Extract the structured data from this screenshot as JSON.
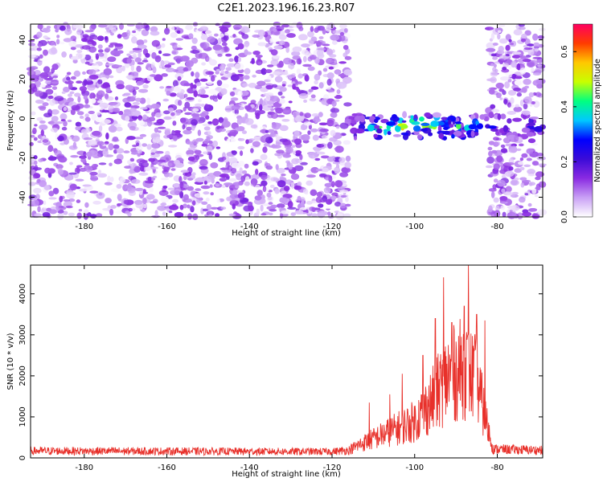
{
  "title": "C2E1.2023.196.16.23.R07",
  "colors": {
    "snr_line": "#e8302a",
    "axis": "#000000"
  },
  "chart_data": [
    {
      "type": "heatmap",
      "xlabel": "Height of straight line (km)",
      "ylabel": "Frequency (Hz)",
      "xlim": [
        -193,
        -69
      ],
      "ylim": [
        -50,
        48
      ],
      "x_ticks": [
        -180,
        -160,
        -140,
        -120,
        -100,
        -80
      ],
      "y_ticks": [
        -40,
        -20,
        0,
        20,
        40
      ],
      "colorbar": {
        "label": "Normalized spectral amplitude",
        "range": [
          0.0,
          0.7
        ],
        "ticks": [
          0.0,
          0.2,
          0.4,
          0.6
        ],
        "colormap": [
          "#ffffff",
          "#c9a0f5",
          "#8a2be2",
          "#3b0bd8",
          "#0000ff",
          "#00c8ff",
          "#00ff80",
          "#c8ff00",
          "#ffc800",
          "#ff3c00",
          "#ff0060"
        ]
      },
      "signal_band": {
        "x_range": [
          -116,
          -70
        ],
        "center_hz": -4,
        "width_hz": 12,
        "peak_amplitude": 0.5
      },
      "no_data_regions": [
        {
          "x_range": [
            -116,
            -82
          ],
          "outside_band": true
        }
      ],
      "noise_regions": [
        {
          "x_range": [
            -193,
            -116
          ]
        },
        {
          "x_range": [
            -82,
            -69
          ]
        }
      ]
    },
    {
      "type": "line",
      "xlabel": "Height of straight line (km)",
      "ylabel": "SNR (10 * v/v)",
      "xlim": [
        -193,
        -69
      ],
      "ylim": [
        0,
        4700
      ],
      "x_ticks": [
        -180,
        -160,
        -140,
        -120,
        -100,
        -80
      ],
      "y_ticks": [
        0,
        1000,
        2000,
        3000,
        4000
      ],
      "series_profile": {
        "points": [
          [
            -193,
            200
          ],
          [
            -120,
            180
          ],
          [
            -116,
            220
          ],
          [
            -112,
            450
          ],
          [
            -108,
            650
          ],
          [
            -104,
            850
          ],
          [
            -100,
            1050
          ],
          [
            -96,
            1600
          ],
          [
            -92,
            2300
          ],
          [
            -88,
            2600
          ],
          [
            -85,
            2200
          ],
          [
            -83,
            1200
          ],
          [
            -81,
            250
          ],
          [
            -69,
            220
          ]
        ],
        "notable_peaks": [
          [
            -111,
            1350
          ],
          [
            -106,
            1550
          ],
          [
            -103,
            2050
          ],
          [
            -98,
            2500
          ],
          [
            -95,
            3400
          ],
          [
            -93,
            4400
          ],
          [
            -91,
            3300
          ],
          [
            -88,
            3700
          ],
          [
            -87,
            4700
          ],
          [
            -85,
            3500
          ],
          [
            -83,
            3350
          ]
        ]
      }
    }
  ]
}
